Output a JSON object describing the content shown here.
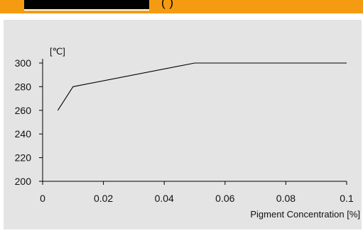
{
  "header": {
    "dark_label": "",
    "parenthetical": "(                    )"
  },
  "chart_data": {
    "type": "line",
    "title": "",
    "xlabel": "Pigment Concentration [%]",
    "ylabel": "[℃]",
    "xlim": [
      0,
      0.1
    ],
    "ylim": [
      200,
      300
    ],
    "x_ticks": [
      "0",
      "0.02",
      "0.04",
      "0.06",
      "0.08",
      "0.1"
    ],
    "y_ticks": [
      "200",
      "220",
      "240",
      "260",
      "280",
      "300"
    ],
    "grid": false,
    "legend": "none",
    "series": [
      {
        "x": [
          0.005,
          0.01,
          0.05,
          0.1
        ],
        "values": [
          260,
          280,
          300,
          300
        ]
      }
    ]
  },
  "colors": {
    "header_bg": "#f59b12",
    "panel_bg": "#e4e4e4",
    "line": "#000000"
  }
}
